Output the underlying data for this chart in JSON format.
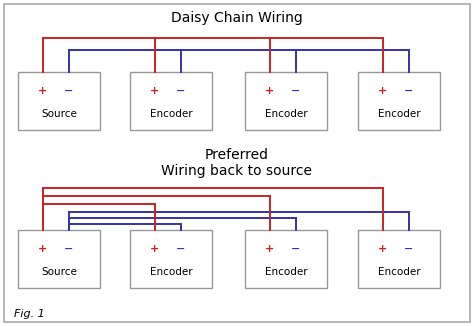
{
  "bg_color": "#ffffff",
  "border_color": "#888888",
  "fig_label": "Fig. 1",
  "title1": "Daisy Chain Wiring",
  "title2": "Preferred\nWiring back to source",
  "red_color": "#cc2222",
  "blue_color": "#3333aa",
  "text_color": "#000000",
  "plus_color": "#cc2222",
  "minus_color": "#3333aa",
  "box_edge_color": "#999999",
  "outer_edge_color": "#aaaaaa"
}
